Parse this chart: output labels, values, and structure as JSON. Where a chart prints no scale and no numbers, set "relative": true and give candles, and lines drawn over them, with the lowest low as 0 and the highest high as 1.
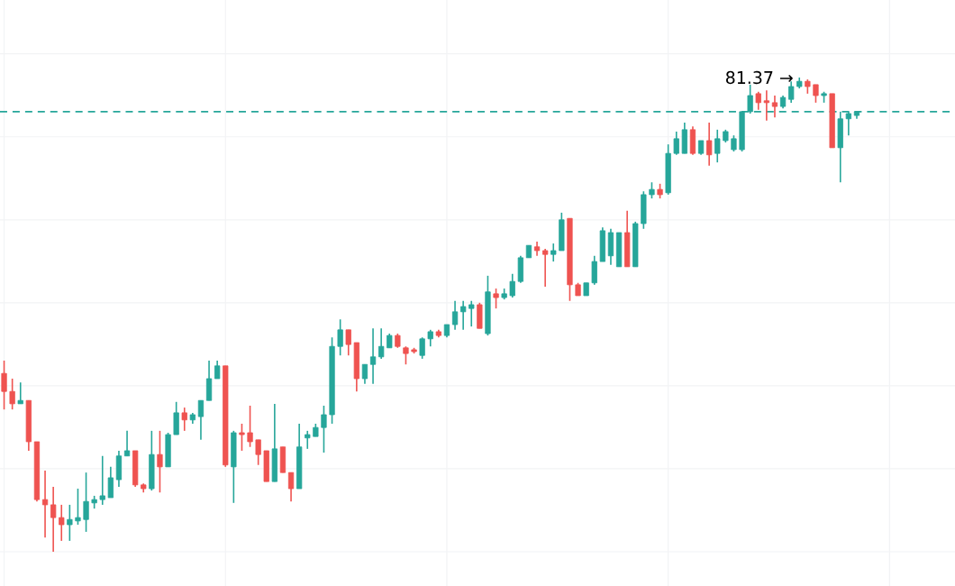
{
  "chart_data": {
    "type": "candlestick",
    "relative": true,
    "grid": true,
    "categories": [
      null,
      null,
      null,
      null,
      null,
      null,
      null,
      null,
      null,
      null,
      null,
      null,
      null,
      null,
      null,
      null,
      null,
      null,
      null,
      null,
      null,
      null,
      null,
      null,
      null,
      null,
      null,
      null,
      null,
      null,
      null,
      null,
      null,
      null,
      null,
      null,
      null,
      null,
      null,
      null,
      null,
      null,
      null,
      null,
      null,
      null,
      null,
      null,
      null,
      null,
      null,
      null,
      null,
      null,
      null,
      null,
      null,
      null,
      null,
      null,
      null,
      null,
      null,
      null,
      null,
      null,
      null,
      null,
      null,
      null,
      null,
      null,
      null,
      null,
      null,
      null,
      null,
      null,
      null,
      null,
      null,
      null,
      null,
      null,
      null,
      null,
      null,
      null,
      null,
      null,
      null,
      null,
      null,
      null,
      null,
      null,
      null,
      null,
      null,
      null,
      null,
      null,
      null,
      null,
      null
    ],
    "ohlc": [
      [
        0.376,
        0.403,
        0.3,
        0.338
      ],
      [
        0.338,
        0.365,
        0.3,
        0.312
      ],
      [
        0.312,
        0.357,
        0.312,
        0.319
      ],
      [
        0.319,
        0.319,
        0.213,
        0.232
      ],
      [
        0.232,
        0.232,
        0.106,
        0.11
      ],
      [
        0.11,
        0.171,
        0.03,
        0.099
      ],
      [
        0.099,
        0.137,
        0.0,
        0.072
      ],
      [
        0.072,
        0.099,
        0.023,
        0.057
      ],
      [
        0.057,
        0.099,
        0.023,
        0.068
      ],
      [
        0.065,
        0.133,
        0.057,
        0.072
      ],
      [
        0.068,
        0.167,
        0.042,
        0.106
      ],
      [
        0.103,
        0.118,
        0.091,
        0.11
      ],
      [
        0.11,
        0.202,
        0.099,
        0.118
      ],
      [
        0.114,
        0.179,
        0.114,
        0.156
      ],
      [
        0.152,
        0.213,
        0.137,
        0.202
      ],
      [
        0.202,
        0.255,
        0.202,
        0.213
      ],
      [
        0.213,
        0.213,
        0.137,
        0.141
      ],
      [
        0.141,
        0.144,
        0.125,
        0.133
      ],
      [
        0.133,
        0.255,
        0.129,
        0.205
      ],
      [
        0.205,
        0.255,
        0.125,
        0.179
      ],
      [
        0.179,
        0.251,
        0.179,
        0.247
      ],
      [
        0.247,
        0.316,
        0.247,
        0.293
      ],
      [
        0.293,
        0.304,
        0.255,
        0.278
      ],
      [
        0.278,
        0.293,
        0.27,
        0.289
      ],
      [
        0.285,
        0.319,
        0.236,
        0.319
      ],
      [
        0.319,
        0.403,
        0.319,
        0.365
      ],
      [
        0.365,
        0.403,
        0.365,
        0.392
      ],
      [
        0.392,
        0.392,
        0.179,
        0.183
      ],
      [
        0.179,
        0.255,
        0.103,
        0.251
      ],
      [
        0.251,
        0.27,
        0.213,
        0.247
      ],
      [
        0.251,
        0.308,
        0.221,
        0.232
      ],
      [
        0.236,
        0.236,
        0.183,
        0.205
      ],
      [
        0.213,
        0.213,
        0.148,
        0.148
      ],
      [
        0.148,
        0.312,
        0.148,
        0.217
      ],
      [
        0.221,
        0.221,
        0.167,
        0.167
      ],
      [
        0.167,
        0.167,
        0.106,
        0.133
      ],
      [
        0.133,
        0.27,
        0.133,
        0.221
      ],
      [
        0.24,
        0.255,
        0.217,
        0.247
      ],
      [
        0.243,
        0.27,
        0.243,
        0.262
      ],
      [
        0.262,
        0.308,
        0.209,
        0.289
      ],
      [
        0.289,
        0.452,
        0.27,
        0.433
      ],
      [
        0.433,
        0.49,
        0.414,
        0.468
      ],
      [
        0.468,
        0.468,
        0.414,
        0.437
      ],
      [
        0.441,
        0.441,
        0.338,
        0.365
      ],
      [
        0.365,
        0.395,
        0.354,
        0.395
      ],
      [
        0.395,
        0.471,
        0.354,
        0.411
      ],
      [
        0.411,
        0.471,
        0.407,
        0.433
      ],
      [
        0.43,
        0.46,
        0.43,
        0.456
      ],
      [
        0.456,
        0.46,
        0.43,
        0.433
      ],
      [
        0.43,
        0.433,
        0.395,
        0.418
      ],
      [
        0.426,
        0.43,
        0.418,
        0.422
      ],
      [
        0.414,
        0.452,
        0.407,
        0.449
      ],
      [
        0.449,
        0.468,
        0.433,
        0.464
      ],
      [
        0.464,
        0.468,
        0.452,
        0.456
      ],
      [
        0.456,
        0.479,
        0.452,
        0.479
      ],
      [
        0.479,
        0.529,
        0.468,
        0.506
      ],
      [
        0.506,
        0.529,
        0.468,
        0.517
      ],
      [
        0.513,
        0.529,
        0.475,
        0.521
      ],
      [
        0.521,
        0.525,
        0.471,
        0.471
      ],
      [
        0.46,
        0.582,
        0.456,
        0.548
      ],
      [
        0.544,
        0.555,
        0.513,
        0.536
      ],
      [
        0.536,
        0.555,
        0.532,
        0.544
      ],
      [
        0.54,
        0.586,
        0.536,
        0.57
      ],
      [
        0.57,
        0.624,
        0.567,
        0.62
      ],
      [
        0.62,
        0.646,
        0.62,
        0.646
      ],
      [
        0.643,
        0.654,
        0.624,
        0.635
      ],
      [
        0.635,
        0.639,
        0.559,
        0.627
      ],
      [
        0.627,
        0.65,
        0.612,
        0.635
      ],
      [
        0.635,
        0.715,
        0.635,
        0.7
      ],
      [
        0.703,
        0.703,
        0.529,
        0.563
      ],
      [
        0.563,
        0.567,
        0.54,
        0.54
      ],
      [
        0.54,
        0.567,
        0.54,
        0.567
      ],
      [
        0.567,
        0.624,
        0.563,
        0.612
      ],
      [
        0.612,
        0.684,
        0.612,
        0.677
      ],
      [
        0.624,
        0.681,
        0.605,
        0.673
      ],
      [
        0.601,
        0.673,
        0.601,
        0.673
      ],
      [
        0.673,
        0.719,
        0.601,
        0.601
      ],
      [
        0.601,
        0.696,
        0.601,
        0.692
      ],
      [
        0.692,
        0.76,
        0.681,
        0.753
      ],
      [
        0.753,
        0.779,
        0.745,
        0.764
      ],
      [
        0.764,
        0.776,
        0.745,
        0.753
      ],
      [
        0.757,
        0.859,
        0.753,
        0.84
      ],
      [
        0.84,
        0.886,
        0.837,
        0.871
      ],
      [
        0.84,
        0.905,
        0.84,
        0.89
      ],
      [
        0.89,
        0.897,
        0.837,
        0.84
      ],
      [
        0.84,
        0.867,
        0.837,
        0.867
      ],
      [
        0.867,
        0.905,
        0.814,
        0.837
      ],
      [
        0.84,
        0.89,
        0.821,
        0.871
      ],
      [
        0.867,
        0.89,
        0.863,
        0.886
      ],
      [
        0.848,
        0.878,
        0.844,
        0.871
      ],
      [
        0.848,
        0.928,
        0.844,
        0.928
      ],
      [
        0.928,
        0.985,
        0.924,
        0.962
      ],
      [
        0.966,
        0.97,
        0.932,
        0.947
      ],
      [
        0.951,
        0.973,
        0.909,
        0.947
      ],
      [
        0.947,
        0.962,
        0.916,
        0.939
      ],
      [
        0.939,
        0.962,
        0.935,
        0.958
      ],
      [
        0.954,
        0.992,
        0.947,
        0.981
      ],
      [
        0.981,
        1.0,
        0.977,
        0.992
      ],
      [
        0.992,
        0.996,
        0.966,
        0.981
      ],
      [
        0.985,
        0.985,
        0.947,
        0.962
      ],
      [
        0.962,
        0.97,
        0.947,
        0.966
      ],
      [
        0.966,
        0.966,
        0.852,
        0.852
      ],
      [
        0.852,
        0.928,
        0.779,
        0.913
      ],
      [
        0.913,
        0.928,
        0.878,
        0.924
      ],
      [
        0.92,
        0.928,
        0.913,
        0.928
      ]
    ],
    "ref_lines": [
      {
        "axis": "y",
        "value": 0.928,
        "color": "#26a69a",
        "line_style": "dashed"
      }
    ],
    "annotations": [
      "81.37 →"
    ]
  }
}
